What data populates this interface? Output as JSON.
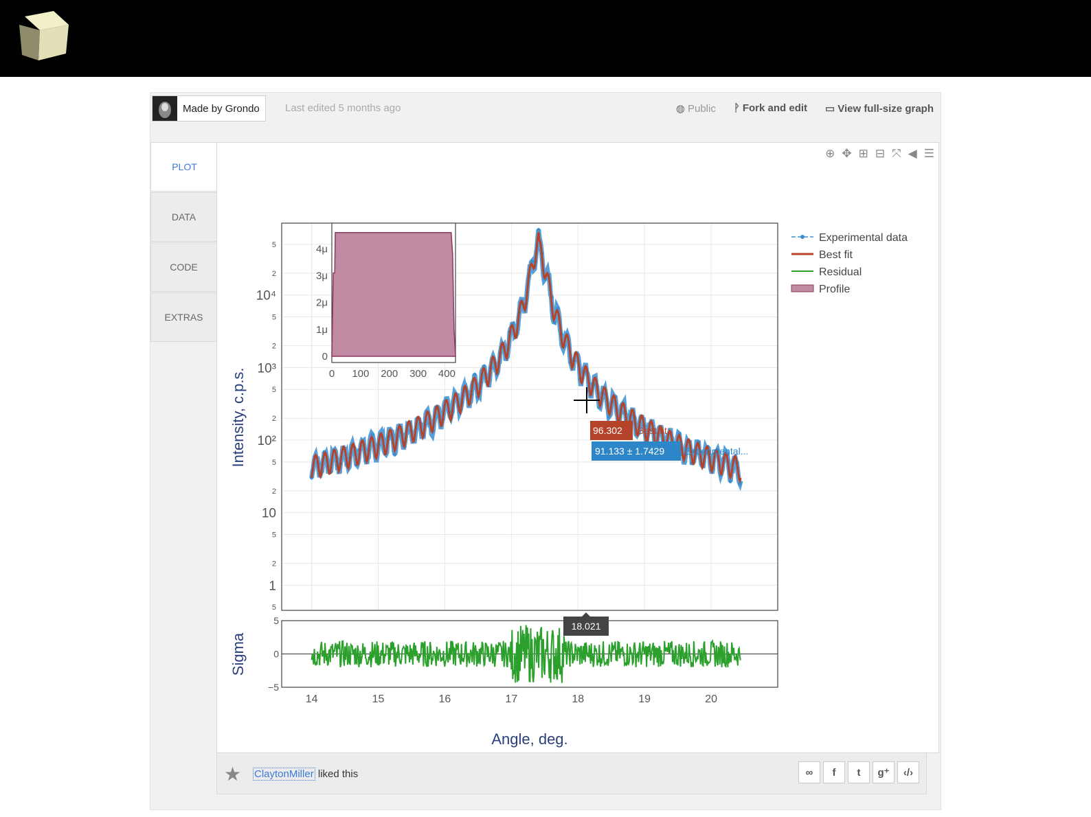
{
  "header": {
    "logo_icon": "cube-icon"
  },
  "meta": {
    "made_by_prefix": "Made by",
    "author": "Grondo",
    "last_edited": "Last edited 5 months ago",
    "public_label": "Public",
    "fork_label": "Fork and edit",
    "view_full_label": "View full-size graph"
  },
  "tabs": [
    {
      "label": "PLOT"
    },
    {
      "label": "DATA"
    },
    {
      "label": "CODE"
    },
    {
      "label": "EXTRAS"
    }
  ],
  "footer": {
    "user": "ClaytonMiller",
    "liked_text": "liked this",
    "share_buttons": [
      "link-icon",
      "facebook-icon",
      "twitter-icon",
      "google-plus-icon",
      "embed-icon"
    ]
  },
  "chart_data": [
    {
      "type": "line",
      "xlabel": "",
      "ylabel": "Intensity, c.p.s.",
      "yscale": "log",
      "xlim": [
        13.55,
        21.0
      ],
      "ylim": [
        0.45,
        98000
      ],
      "y_major_ticks": [
        "1",
        "10",
        "10²",
        "10³",
        "10⁴"
      ],
      "y_minor_tick_labels": [
        "2",
        "5"
      ],
      "series": [
        {
          "name": "Experimental data",
          "color": "#3b8fd0",
          "peak_x": 17.42,
          "peak_y": 50000,
          "start": [
            14.0,
            3.0
          ],
          "end": [
            20.45,
            1.5
          ]
        },
        {
          "name": "Best fit",
          "color": "#b5432a",
          "peak_x": 17.42,
          "peak_y": 48000,
          "start": [
            14.0,
            3.0
          ],
          "end": [
            20.45,
            1.6
          ]
        }
      ],
      "legend_position": "top-right",
      "hover": {
        "best_fit_value": "96.302",
        "best_fit_label": "Best fit",
        "exp_value": "91.133 ± 1.7429",
        "exp_label": "Experimental...",
        "x_value": "18.021"
      }
    },
    {
      "type": "line",
      "ylabel": "Sigma",
      "xlabel": "Angle, deg.",
      "xlim": [
        13.55,
        21.0
      ],
      "ylim": [
        -5,
        5
      ],
      "x_ticks": [
        "14",
        "15",
        "16",
        "17",
        "18",
        "19",
        "20"
      ],
      "y_ticks": [
        "5",
        "0",
        "−5"
      ],
      "series": [
        {
          "name": "Residual",
          "color": "#2ca02c"
        }
      ]
    },
    {
      "type": "area",
      "name": "Profile",
      "color": "#c08ba2",
      "x_ticks": [
        "0",
        "100",
        "200",
        "300",
        "400"
      ],
      "y_ticks": [
        "0",
        "1μ",
        "2μ",
        "3μ",
        "4μ"
      ],
      "xlim": [
        0,
        430
      ],
      "ylim": [
        0,
        4.8
      ],
      "points": [
        [
          0,
          0
        ],
        [
          5,
          3.1
        ],
        [
          10,
          3.1
        ],
        [
          12,
          4.6
        ],
        [
          415,
          4.6
        ],
        [
          420,
          3.8
        ],
        [
          425,
          1.0
        ],
        [
          430,
          0
        ]
      ]
    }
  ],
  "legend": [
    {
      "label": "Experimental data",
      "color": "#3b8fd0"
    },
    {
      "label": "Best fit",
      "color": "#b5432a"
    },
    {
      "label": "Residual",
      "color": "#2ca02c"
    },
    {
      "label": "Profile",
      "color": "#c08ba2"
    }
  ]
}
